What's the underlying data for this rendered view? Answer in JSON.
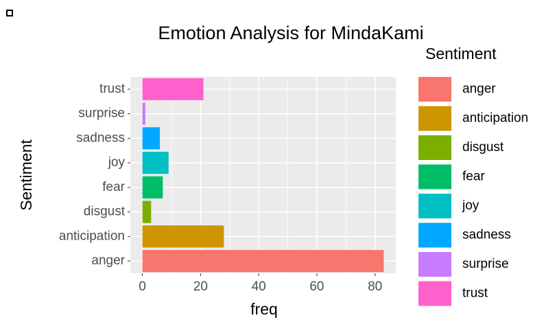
{
  "chart_data": {
    "type": "bar",
    "orientation": "horizontal",
    "title": "Emotion Analysis for MindaKami",
    "x_label": "freq",
    "y_label": "Sentiment",
    "legend_title": "Sentiment",
    "categories": [
      "anger",
      "anticipation",
      "disgust",
      "fear",
      "joy",
      "sadness",
      "surprise",
      "trust"
    ],
    "values": [
      83,
      28,
      3,
      7,
      9,
      6,
      1,
      21
    ],
    "colors": [
      "#F8766D",
      "#CD9600",
      "#7CAE00",
      "#00BE67",
      "#00BFC4",
      "#00A9FF",
      "#C77CFF",
      "#FF61CC"
    ],
    "xlim": [
      -4.15,
      87.15
    ],
    "xticks": [
      0,
      20,
      40,
      60,
      80
    ],
    "grid": true
  }
}
